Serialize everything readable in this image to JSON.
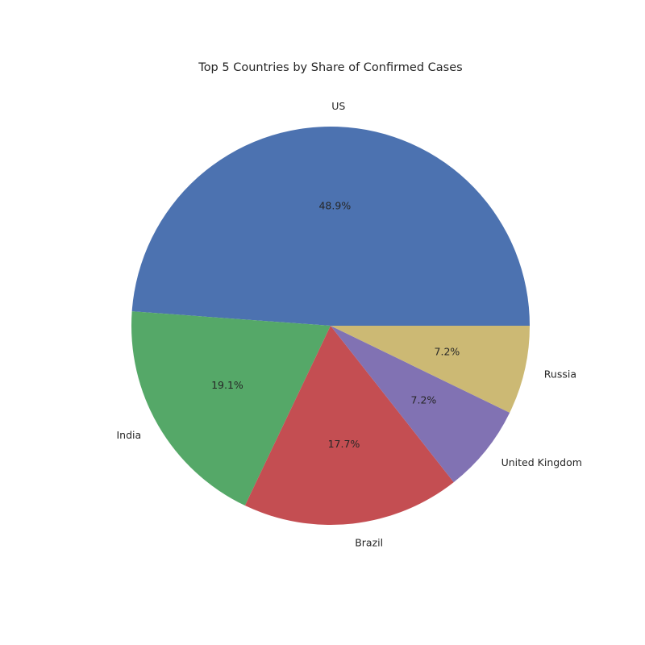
{
  "chart_data": {
    "type": "pie",
    "title": "Top 5 Countries by Share of Confirmed Cases",
    "categories": [
      "US",
      "India",
      "Brazil",
      "United Kingdom",
      "Russia"
    ],
    "values": [
      48.9,
      19.1,
      17.7,
      7.2,
      7.2
    ],
    "percent_labels": [
      "48.9%",
      "19.1%",
      "17.7%",
      "7.2%",
      "7.2%"
    ],
    "colors": [
      "#4c72b0",
      "#55a868",
      "#c44e52",
      "#8172b3",
      "#ccb974"
    ],
    "start_angle_deg": 0,
    "direction": "counterclockwise",
    "legend": "none"
  }
}
